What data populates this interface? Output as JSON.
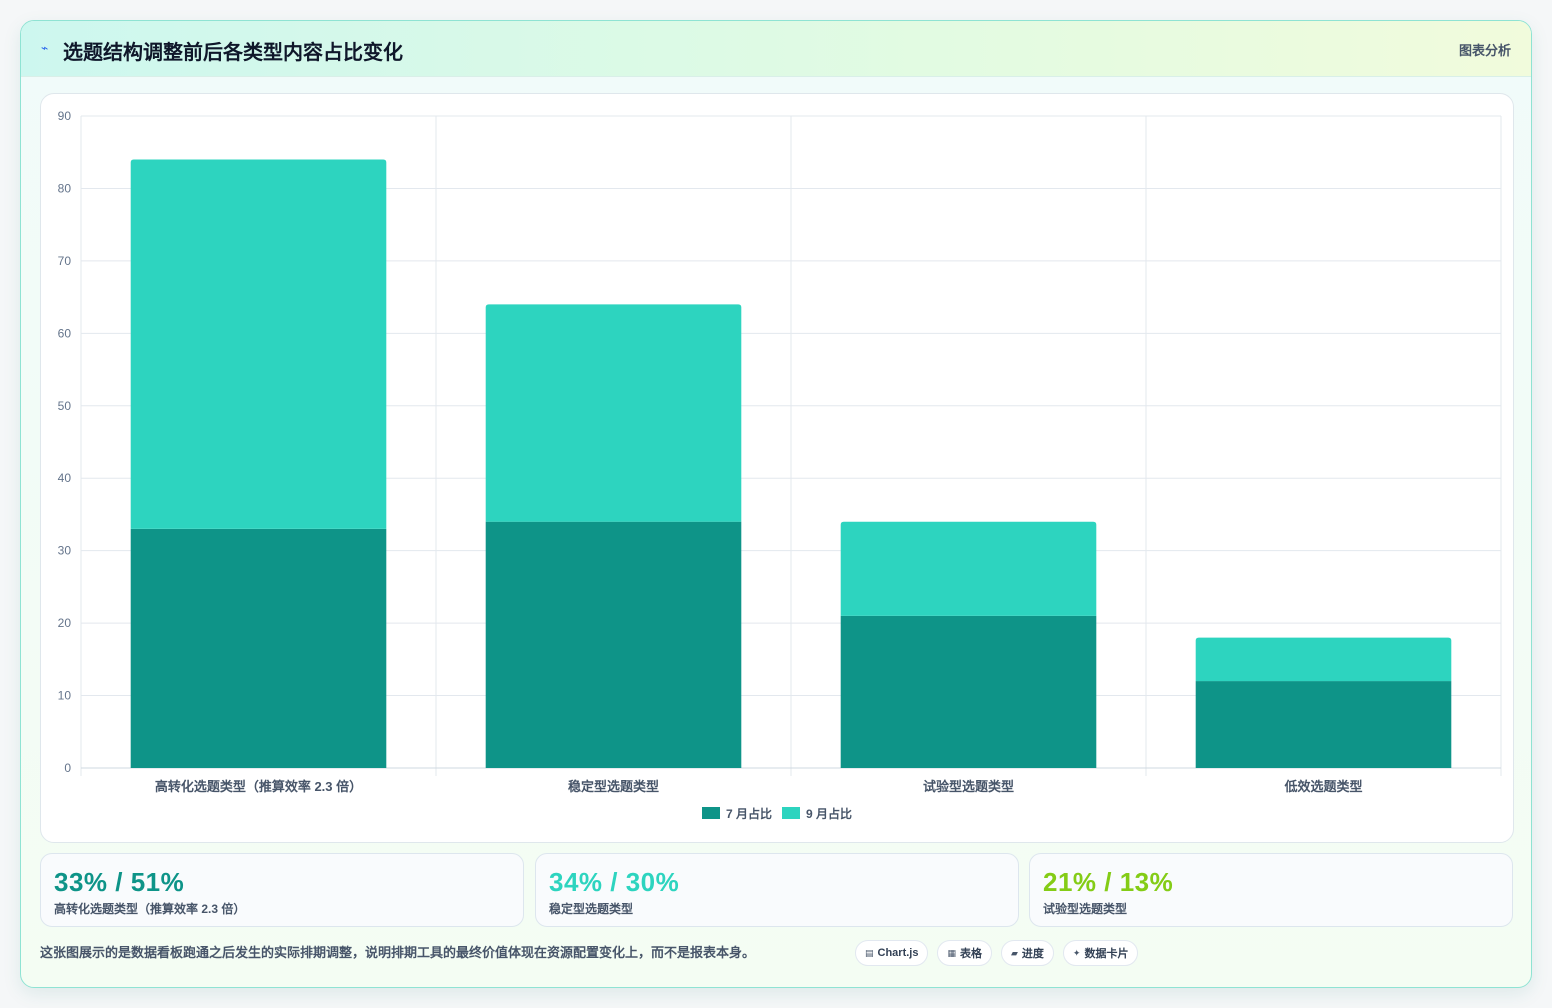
{
  "header": {
    "icon": "trend-icon",
    "title": "选题结构调整前后各类型内容占比变化",
    "tag": "图表分析"
  },
  "colors": {
    "july": "#0e9488",
    "september": "#2dd4bf",
    "stat1": "#0e9488",
    "stat2": "#2dd4bf",
    "stat3": "#84cc16"
  },
  "chart_data": {
    "type": "bar",
    "stacked": true,
    "categories": [
      "高转化选题类型（推算效率 2.3 倍）",
      "稳定型选题类型",
      "试验型选题类型",
      "低效选题类型"
    ],
    "series": [
      {
        "name": "7 月占比",
        "values": [
          33,
          34,
          21,
          12
        ]
      },
      {
        "name": "9 月占比",
        "values": [
          51,
          30,
          13,
          6
        ]
      }
    ],
    "ylim": [
      0,
      90
    ],
    "yticks": [
      0,
      10,
      20,
      30,
      40,
      50,
      60,
      70,
      80,
      90
    ],
    "grid": true,
    "legend": "bottom"
  },
  "stats": [
    {
      "value": "33% / 51%",
      "label": "高转化选题类型（推算效率 2.3 倍）"
    },
    {
      "value": "34% / 30%",
      "label": "稳定型选题类型"
    },
    {
      "value": "21% / 13%",
      "label": "试验型选题类型"
    }
  ],
  "footnote": "这张图展示的是数据看板跑通之后发生的实际排期调整，说明排期工具的最终价值体现在资源配置变化上，而不是报表本身。",
  "chips": [
    {
      "icon": "chart-icon",
      "label": "Chart.js"
    },
    {
      "icon": "table-icon",
      "label": "表格"
    },
    {
      "icon": "progress-icon",
      "label": "进度"
    },
    {
      "icon": "card-icon",
      "label": "数据卡片"
    }
  ]
}
